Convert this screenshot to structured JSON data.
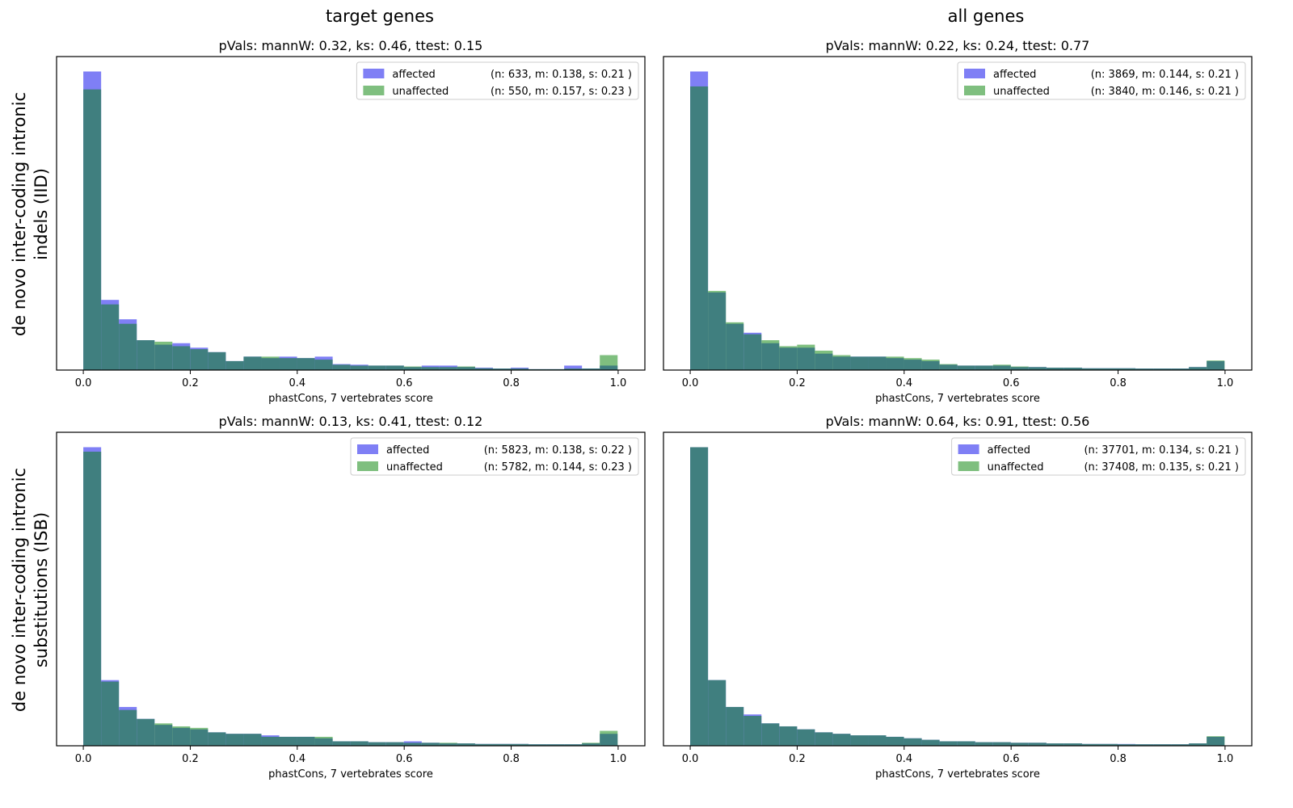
{
  "figure": {
    "column_titles": [
      "target genes",
      "all genes"
    ],
    "row_labels": [
      [
        "de novo inter-coding intronic",
        "indels (IID)"
      ],
      [
        "de novo inter-coding intronic",
        "substitutions (ISB)"
      ]
    ]
  },
  "colors": {
    "affected": "#7f7ff5",
    "unaffected": "#7fbf7f",
    "overlap": "#407f7f"
  },
  "chart_data": [
    {
      "type": "bar",
      "title": "pVals: mannW: 0.32, ks: 0.46, ttest: 0.15",
      "xlabel": "phastCons, 7 vertebrates score",
      "ylabel": "",
      "xlim": [
        -0.05,
        1.05
      ],
      "ylim": [
        0,
        1.05
      ],
      "xticks": [
        0.0,
        0.2,
        0.4,
        0.6,
        0.8,
        1.0
      ],
      "xtick_labels": [
        "0.0",
        "0.2",
        "0.4",
        "0.6",
        "0.8",
        "1.0"
      ],
      "legend_position": "top-right",
      "bin_width": 0.0333,
      "series": [
        {
          "name": "affected",
          "stats": "(n: 633, m: 0.138, s: 0.21 )",
          "values": [
            1.0,
            0.235,
            0.17,
            0.1,
            0.085,
            0.09,
            0.075,
            0.06,
            0.03,
            0.045,
            0.04,
            0.045,
            0.04,
            0.045,
            0.02,
            0.018,
            0.015,
            0.015,
            0.01,
            0.015,
            0.015,
            0.01,
            0.008,
            0.005,
            0.008,
            0.003,
            0.003,
            0.015,
            0.005,
            0.015
          ]
        },
        {
          "name": "unaffected",
          "stats": "(n: 550, m: 0.157, s: 0.23 )",
          "values": [
            0.94,
            0.22,
            0.155,
            0.1,
            0.095,
            0.08,
            0.07,
            0.06,
            0.03,
            0.045,
            0.045,
            0.04,
            0.04,
            0.035,
            0.018,
            0.015,
            0.015,
            0.015,
            0.012,
            0.01,
            0.01,
            0.012,
            0.006,
            0.005,
            0.005,
            0.003,
            0.003,
            0.005,
            0.005,
            0.05
          ]
        }
      ]
    },
    {
      "type": "bar",
      "title": "pVals: mannW: 0.22, ks: 0.24, ttest: 0.77",
      "xlabel": "phastCons, 7 vertebrates score",
      "ylabel": "",
      "xlim": [
        -0.05,
        1.05
      ],
      "ylim": [
        0,
        1.05
      ],
      "xticks": [
        0.0,
        0.2,
        0.4,
        0.6,
        0.8,
        1.0
      ],
      "xtick_labels": [
        "0.0",
        "0.2",
        "0.4",
        "0.6",
        "0.8",
        "1.0"
      ],
      "legend_position": "top-right",
      "bin_width": 0.0333,
      "series": [
        {
          "name": "affected",
          "stats": "(n: 3869, m: 0.144, s: 0.21 )",
          "values": [
            1.0,
            0.26,
            0.155,
            0.125,
            0.09,
            0.075,
            0.075,
            0.055,
            0.045,
            0.045,
            0.045,
            0.04,
            0.035,
            0.03,
            0.018,
            0.015,
            0.015,
            0.015,
            0.01,
            0.01,
            0.008,
            0.008,
            0.006,
            0.006,
            0.006,
            0.005,
            0.005,
            0.005,
            0.01,
            0.03
          ]
        },
        {
          "name": "unaffected",
          "stats": "(n: 3840, m: 0.146, s: 0.21 )",
          "values": [
            0.95,
            0.265,
            0.16,
            0.12,
            0.1,
            0.08,
            0.085,
            0.065,
            0.05,
            0.045,
            0.045,
            0.045,
            0.04,
            0.035,
            0.02,
            0.015,
            0.015,
            0.018,
            0.012,
            0.01,
            0.008,
            0.008,
            0.006,
            0.006,
            0.006,
            0.005,
            0.005,
            0.005,
            0.01,
            0.032
          ]
        }
      ]
    },
    {
      "type": "bar",
      "title": "pVals: mannW: 0.13, ks: 0.41, ttest: 0.12",
      "xlabel": "phastCons, 7 vertebrates score",
      "ylabel": "",
      "xlim": [
        -0.05,
        1.05
      ],
      "ylim": [
        0,
        1.05
      ],
      "xticks": [
        0.0,
        0.2,
        0.4,
        0.6,
        0.8,
        1.0
      ],
      "xtick_labels": [
        "0.0",
        "0.2",
        "0.4",
        "0.6",
        "0.8",
        "1.0"
      ],
      "legend_position": "top-right",
      "bin_width": 0.0333,
      "series": [
        {
          "name": "affected",
          "stats": "(n: 5823, m: 0.138, s: 0.22 )",
          "values": [
            1.0,
            0.22,
            0.13,
            0.09,
            0.07,
            0.06,
            0.055,
            0.045,
            0.04,
            0.04,
            0.035,
            0.03,
            0.03,
            0.025,
            0.015,
            0.015,
            0.012,
            0.012,
            0.015,
            0.01,
            0.008,
            0.008,
            0.006,
            0.006,
            0.006,
            0.005,
            0.005,
            0.005,
            0.008,
            0.04
          ]
        },
        {
          "name": "unaffected",
          "stats": "(n: 5782, m: 0.144, s: 0.23 )",
          "values": [
            0.985,
            0.215,
            0.12,
            0.09,
            0.075,
            0.065,
            0.06,
            0.045,
            0.04,
            0.04,
            0.03,
            0.03,
            0.03,
            0.03,
            0.015,
            0.015,
            0.012,
            0.012,
            0.01,
            0.01,
            0.01,
            0.008,
            0.006,
            0.006,
            0.006,
            0.005,
            0.005,
            0.005,
            0.01,
            0.05
          ]
        }
      ]
    },
    {
      "type": "bar",
      "title": "pVals: mannW: 0.64, ks: 0.91, ttest: 0.56",
      "xlabel": "phastCons, 7 vertebrates score",
      "ylabel": "",
      "xlim": [
        -0.05,
        1.05
      ],
      "ylim": [
        0,
        1.05
      ],
      "xticks": [
        0.0,
        0.2,
        0.4,
        0.6,
        0.8,
        1.0
      ],
      "xtick_labels": [
        "0.0",
        "0.2",
        "0.4",
        "0.6",
        "0.8",
        "1.0"
      ],
      "legend_position": "top-right",
      "bin_width": 0.0333,
      "series": [
        {
          "name": "affected",
          "stats": "(n: 37701, m: 0.134, s: 0.21 )",
          "values": [
            1.0,
            0.22,
            0.13,
            0.105,
            0.075,
            0.065,
            0.055,
            0.045,
            0.04,
            0.035,
            0.035,
            0.03,
            0.025,
            0.02,
            0.015,
            0.015,
            0.012,
            0.012,
            0.01,
            0.01,
            0.008,
            0.008,
            0.006,
            0.006,
            0.006,
            0.005,
            0.005,
            0.005,
            0.008,
            0.03
          ]
        },
        {
          "name": "unaffected",
          "stats": "(n: 37408, m: 0.135, s: 0.21 )",
          "values": [
            1.0,
            0.22,
            0.13,
            0.1,
            0.075,
            0.065,
            0.055,
            0.045,
            0.04,
            0.035,
            0.035,
            0.03,
            0.025,
            0.02,
            0.015,
            0.015,
            0.012,
            0.012,
            0.01,
            0.01,
            0.008,
            0.008,
            0.006,
            0.006,
            0.005,
            0.005,
            0.005,
            0.005,
            0.008,
            0.032
          ]
        }
      ]
    }
  ]
}
